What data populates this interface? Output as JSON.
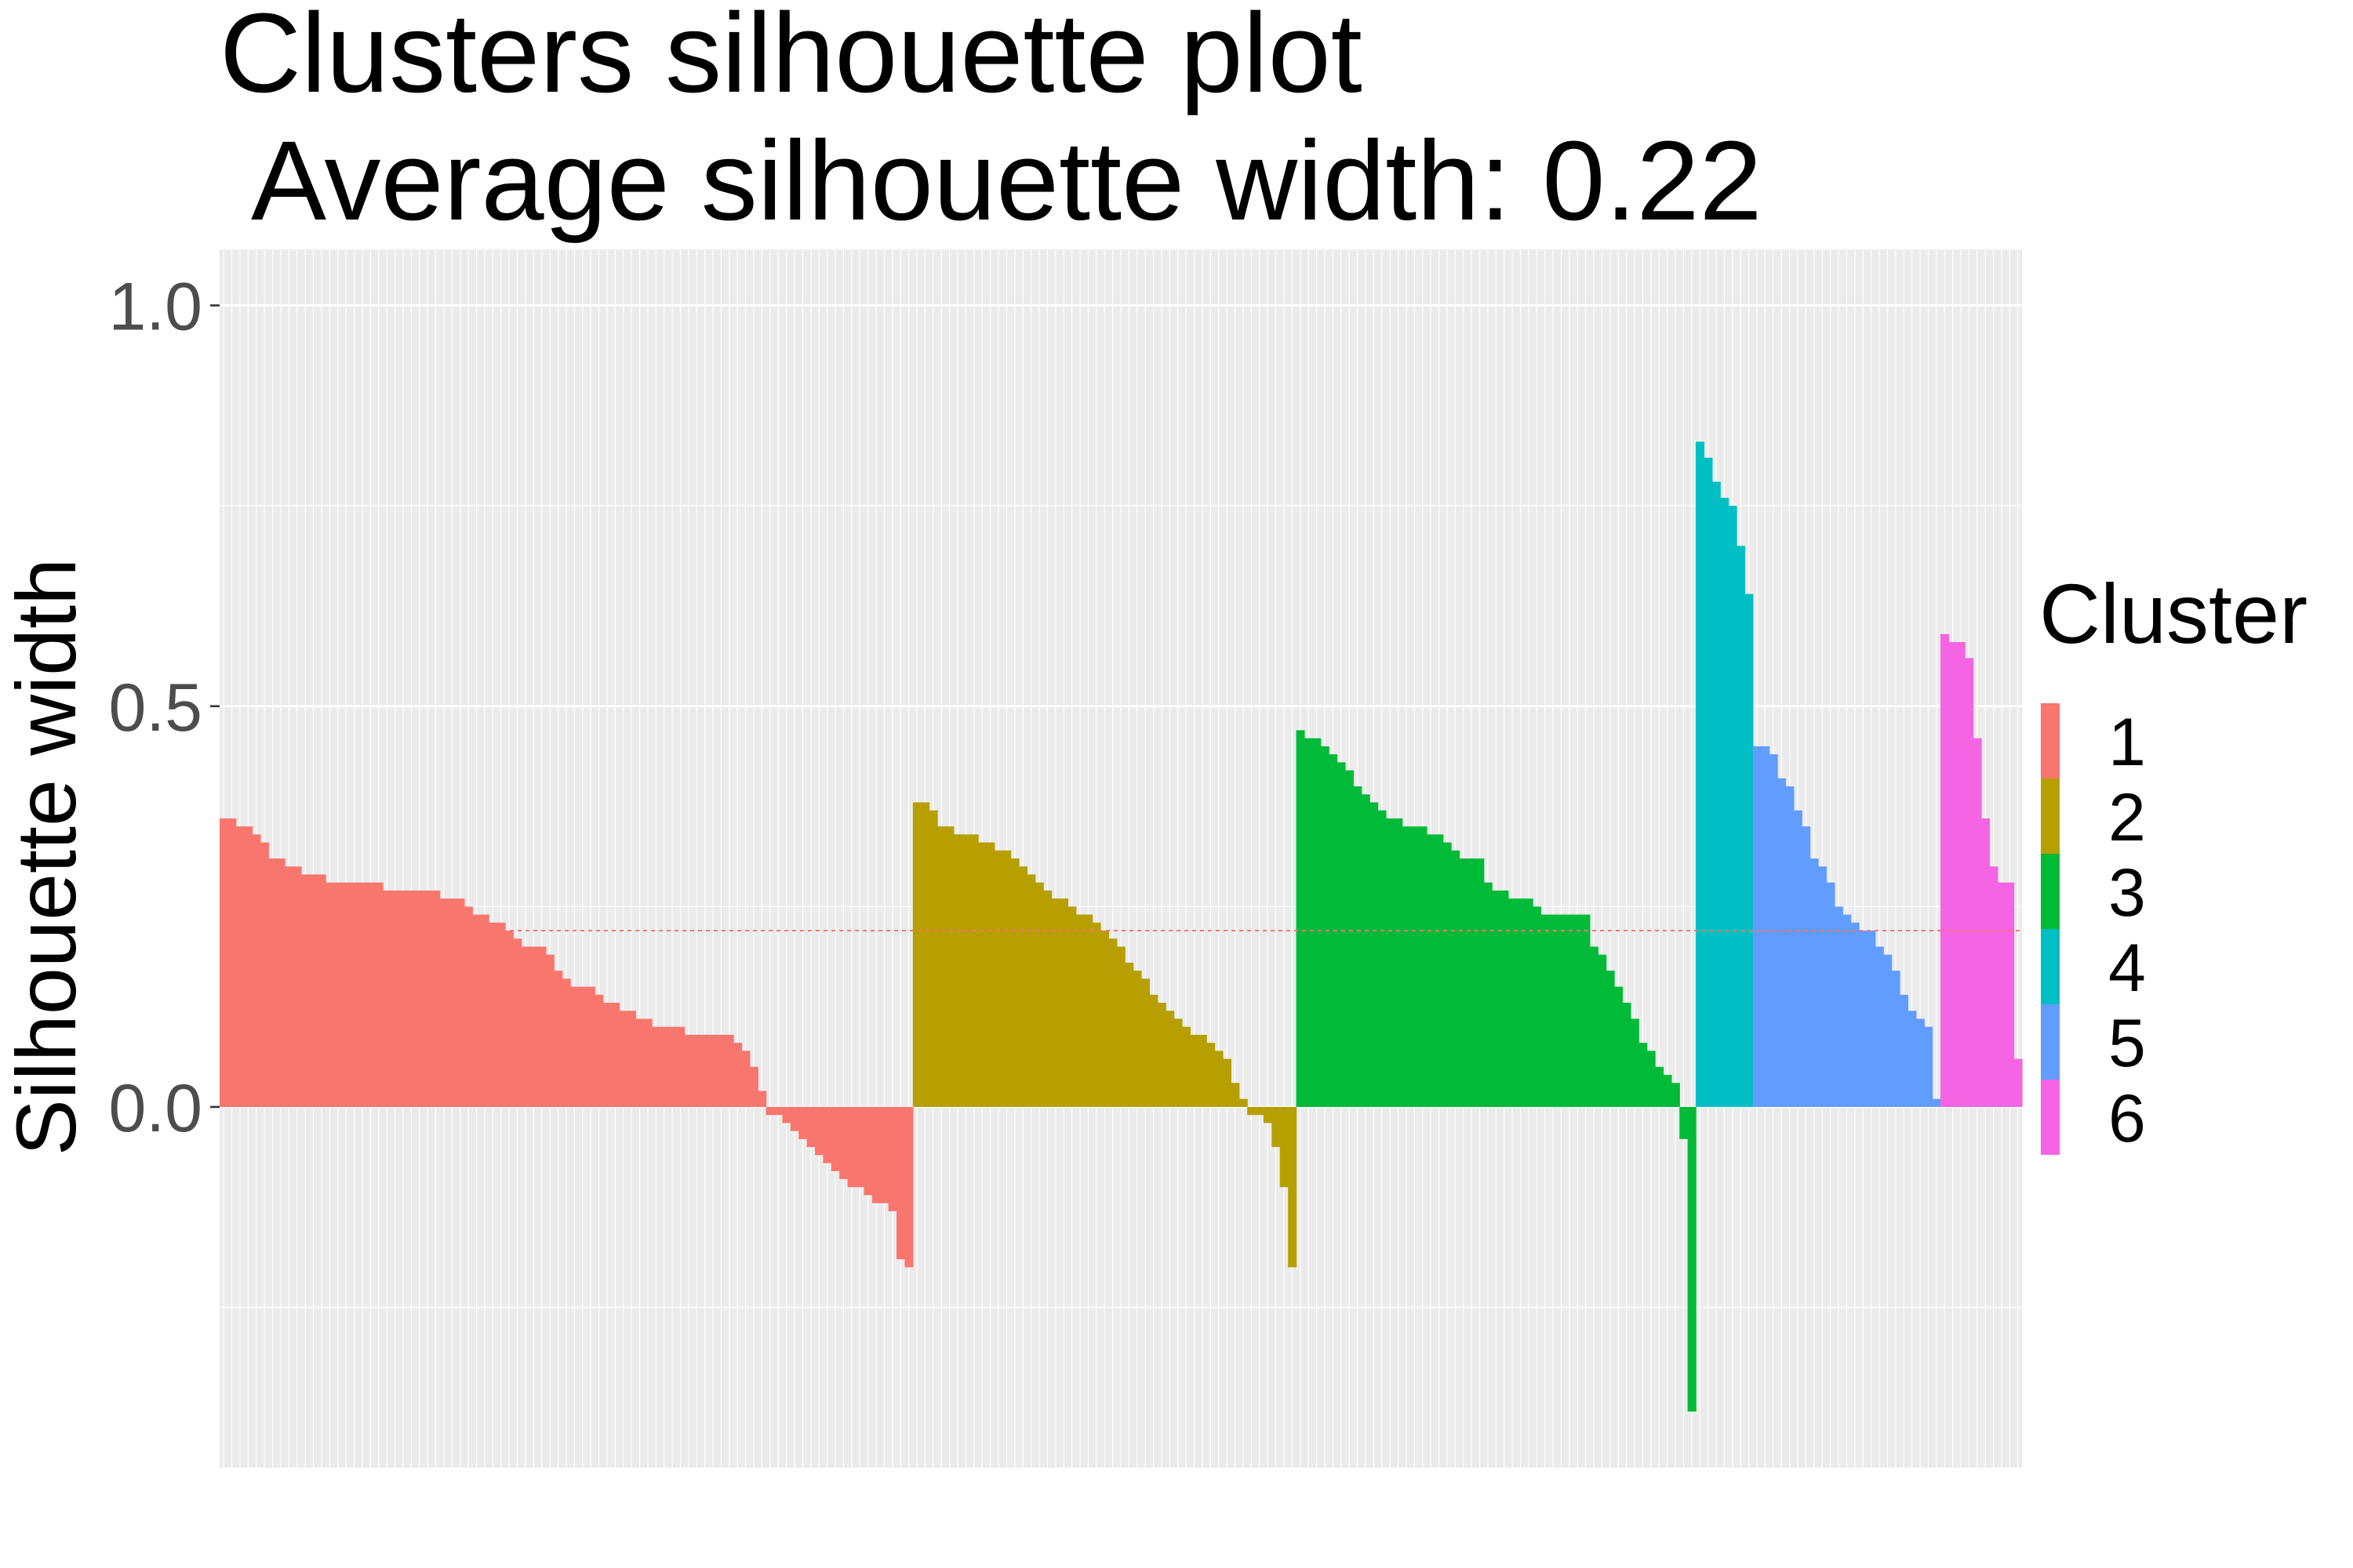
{
  "chart_data": {
    "type": "bar",
    "title": "Clusters silhouette plot",
    "subtitle": "Average silhouette width: 0.22",
    "xlabel": "",
    "ylabel": "Silhouette width",
    "ylim": [
      -0.45,
      1.07
    ],
    "y_ticks": [
      0.0,
      0.5,
      1.0
    ],
    "y_tick_labels": [
      "0.0",
      "0.5",
      "1.0"
    ],
    "grid": true,
    "legend": {
      "title": "Cluster",
      "position": "right",
      "entries": [
        "1",
        "2",
        "3",
        "4",
        "5",
        "6"
      ]
    },
    "average_line": {
      "value": 0.22,
      "style": "dashed",
      "color": "#F8766D"
    },
    "colors": {
      "1": "#F8766D",
      "2": "#B79F00",
      "3": "#00BA38",
      "4": "#00BFC4",
      "5": "#619CFF",
      "6": "#F564E3",
      "panel_bg": "#EBEBEB",
      "grid": "#FFFFFF"
    },
    "series": [
      {
        "name": "1",
        "values": [
          0.36,
          0.36,
          0.35,
          0.35,
          0.34,
          0.33,
          0.31,
          0.31,
          0.3,
          0.3,
          0.29,
          0.29,
          0.29,
          0.28,
          0.28,
          0.28,
          0.28,
          0.28,
          0.28,
          0.28,
          0.27,
          0.27,
          0.27,
          0.27,
          0.27,
          0.27,
          0.27,
          0.26,
          0.26,
          0.26,
          0.25,
          0.24,
          0.24,
          0.23,
          0.23,
          0.22,
          0.21,
          0.2,
          0.2,
          0.2,
          0.19,
          0.17,
          0.16,
          0.15,
          0.15,
          0.15,
          0.14,
          0.13,
          0.13,
          0.12,
          0.12,
          0.11,
          0.11,
          0.1,
          0.1,
          0.1,
          0.1,
          0.09,
          0.09,
          0.09,
          0.09,
          0.09,
          0.09,
          0.08,
          0.07,
          0.05,
          0.02,
          -0.01,
          -0.01,
          -0.02,
          -0.03,
          -0.04,
          -0.05,
          -0.06,
          -0.07,
          -0.08,
          -0.09,
          -0.1,
          -0.1,
          -0.11,
          -0.12,
          -0.12,
          -0.13,
          -0.19,
          -0.2
        ]
      },
      {
        "name": "2",
        "values": [
          0.38,
          0.38,
          0.37,
          0.35,
          0.35,
          0.34,
          0.34,
          0.34,
          0.33,
          0.33,
          0.32,
          0.32,
          0.31,
          0.3,
          0.29,
          0.28,
          0.27,
          0.26,
          0.26,
          0.25,
          0.24,
          0.24,
          0.23,
          0.22,
          0.21,
          0.2,
          0.18,
          0.17,
          0.16,
          0.14,
          0.13,
          0.12,
          0.11,
          0.1,
          0.09,
          0.09,
          0.08,
          0.07,
          0.06,
          0.03,
          0.01,
          -0.01,
          -0.01,
          -0.02,
          -0.05,
          -0.1,
          -0.2
        ]
      },
      {
        "name": "3",
        "values": [
          0.47,
          0.46,
          0.46,
          0.45,
          0.44,
          0.43,
          0.42,
          0.4,
          0.39,
          0.38,
          0.37,
          0.36,
          0.36,
          0.35,
          0.35,
          0.35,
          0.34,
          0.34,
          0.33,
          0.32,
          0.31,
          0.31,
          0.31,
          0.28,
          0.27,
          0.27,
          0.26,
          0.26,
          0.26,
          0.25,
          0.24,
          0.24,
          0.24,
          0.24,
          0.24,
          0.24,
          0.2,
          0.19,
          0.17,
          0.15,
          0.13,
          0.11,
          0.08,
          0.07,
          0.05,
          0.04,
          0.03,
          -0.04,
          -0.38
        ]
      },
      {
        "name": "4",
        "values": [
          0.83,
          0.81,
          0.78,
          0.76,
          0.75,
          0.7,
          0.64
        ]
      },
      {
        "name": "5",
        "values": [
          0.45,
          0.45,
          0.44,
          0.41,
          0.4,
          0.37,
          0.35,
          0.31,
          0.3,
          0.28,
          0.25,
          0.24,
          0.23,
          0.22,
          0.22,
          0.2,
          0.19,
          0.17,
          0.14,
          0.12,
          0.11,
          0.1,
          0.01
        ]
      },
      {
        "name": "6",
        "values": [
          0.59,
          0.58,
          0.58,
          0.56,
          0.46,
          0.36,
          0.3,
          0.28,
          0.28,
          0.06
        ]
      }
    ]
  }
}
